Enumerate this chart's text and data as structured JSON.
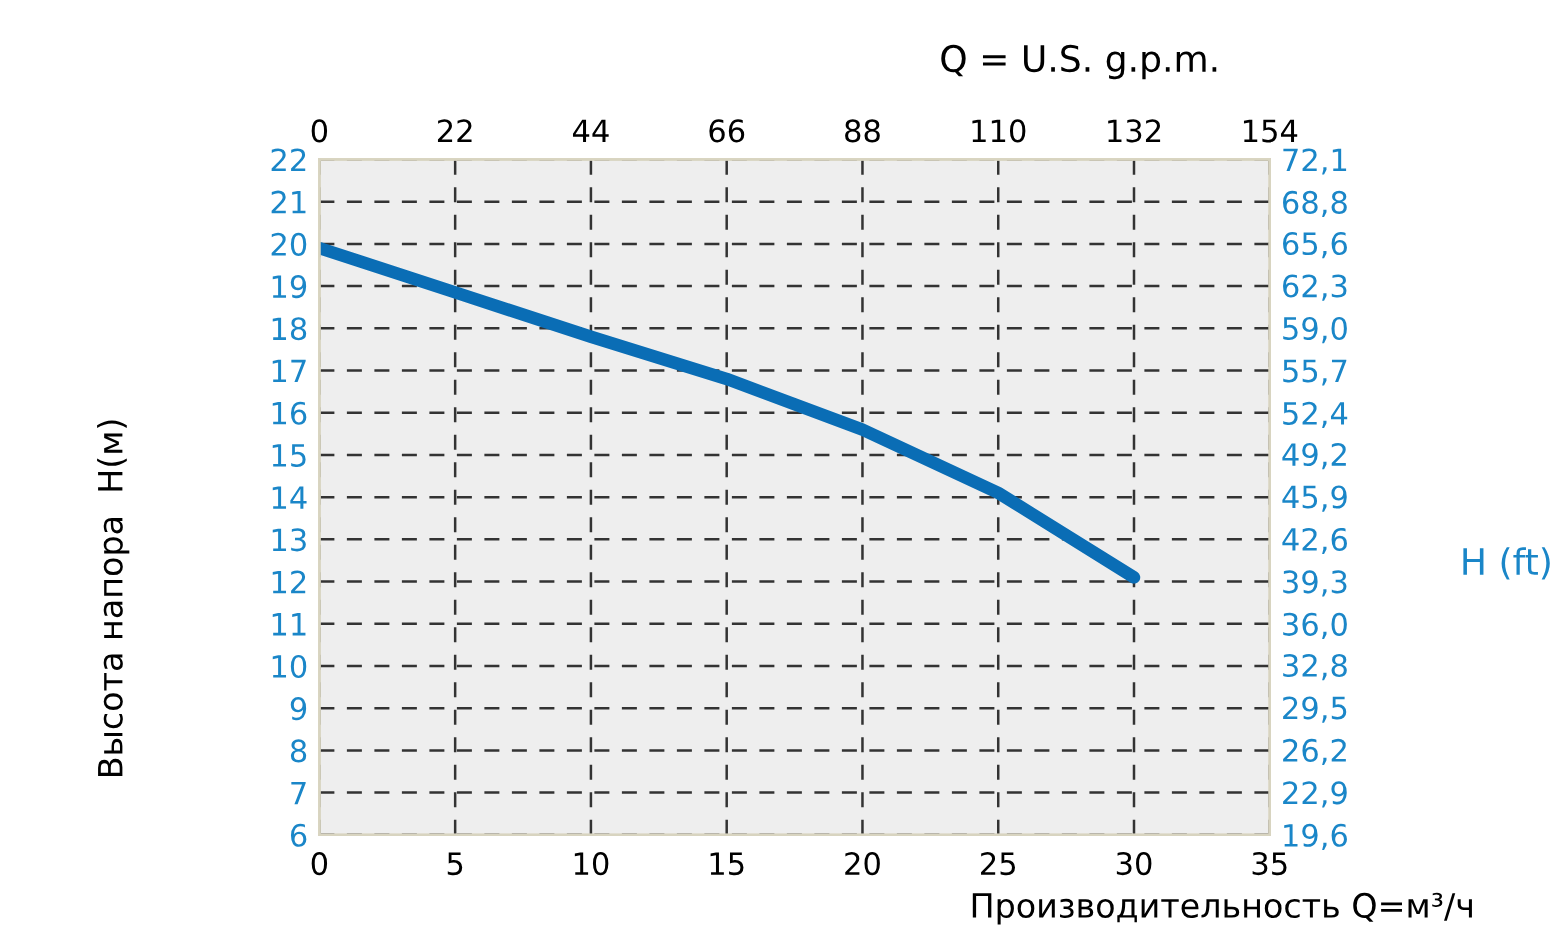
{
  "chart_data": {
    "type": "line",
    "xlabel": "Производительность Q=м³/ч",
    "ylabel": "Высота напора  H(м)",
    "x2label": "Q = U.S. g.p.m.",
    "y2label": "H (ft)",
    "x": [
      0,
      5,
      10,
      15,
      20,
      25,
      30
    ],
    "series": [
      {
        "color": "#0a6db5",
        "values": [
          19.9,
          18.85,
          17.8,
          16.8,
          15.6,
          14.1,
          12.1
        ]
      }
    ],
    "xlim": [
      0,
      35
    ],
    "xticks": [
      0,
      5,
      10,
      15,
      20,
      25,
      30,
      35
    ],
    "ylim": [
      6,
      22
    ],
    "yticks": [
      6,
      7,
      8,
      9,
      10,
      11,
      12,
      13,
      14,
      15,
      16,
      17,
      18,
      19,
      20,
      21,
      22
    ],
    "x2lim": [
      0,
      154
    ],
    "x2ticks": [
      0,
      22,
      44,
      66,
      88,
      110,
      132,
      154
    ],
    "y2lim": [
      19.6,
      72.1
    ],
    "y2ticks": [
      {
        "value": 19.6,
        "label": "19,6"
      },
      {
        "value": 22.9,
        "label": "22,9"
      },
      {
        "value": 26.2,
        "label": "26,2"
      },
      {
        "value": 29.5,
        "label": "29,5"
      },
      {
        "value": 32.8,
        "label": "32,8"
      },
      {
        "value": 36.0,
        "label": "36,0"
      },
      {
        "value": 39.3,
        "label": "39,3"
      },
      {
        "value": 42.6,
        "label": "42,6"
      },
      {
        "value": 45.9,
        "label": "45,9"
      },
      {
        "value": 49.2,
        "label": "49,2"
      },
      {
        "value": 52.4,
        "label": "52,4"
      },
      {
        "value": 55.7,
        "label": "55,7"
      },
      {
        "value": 59.0,
        "label": "59,0"
      },
      {
        "value": 62.3,
        "label": "62,3"
      },
      {
        "value": 65.6,
        "label": "65,6"
      },
      {
        "value": 68.8,
        "label": "68,8"
      },
      {
        "value": 72.1,
        "label": "72,1"
      }
    ],
    "grid": true,
    "marker": "none",
    "line_style": "solid"
  }
}
